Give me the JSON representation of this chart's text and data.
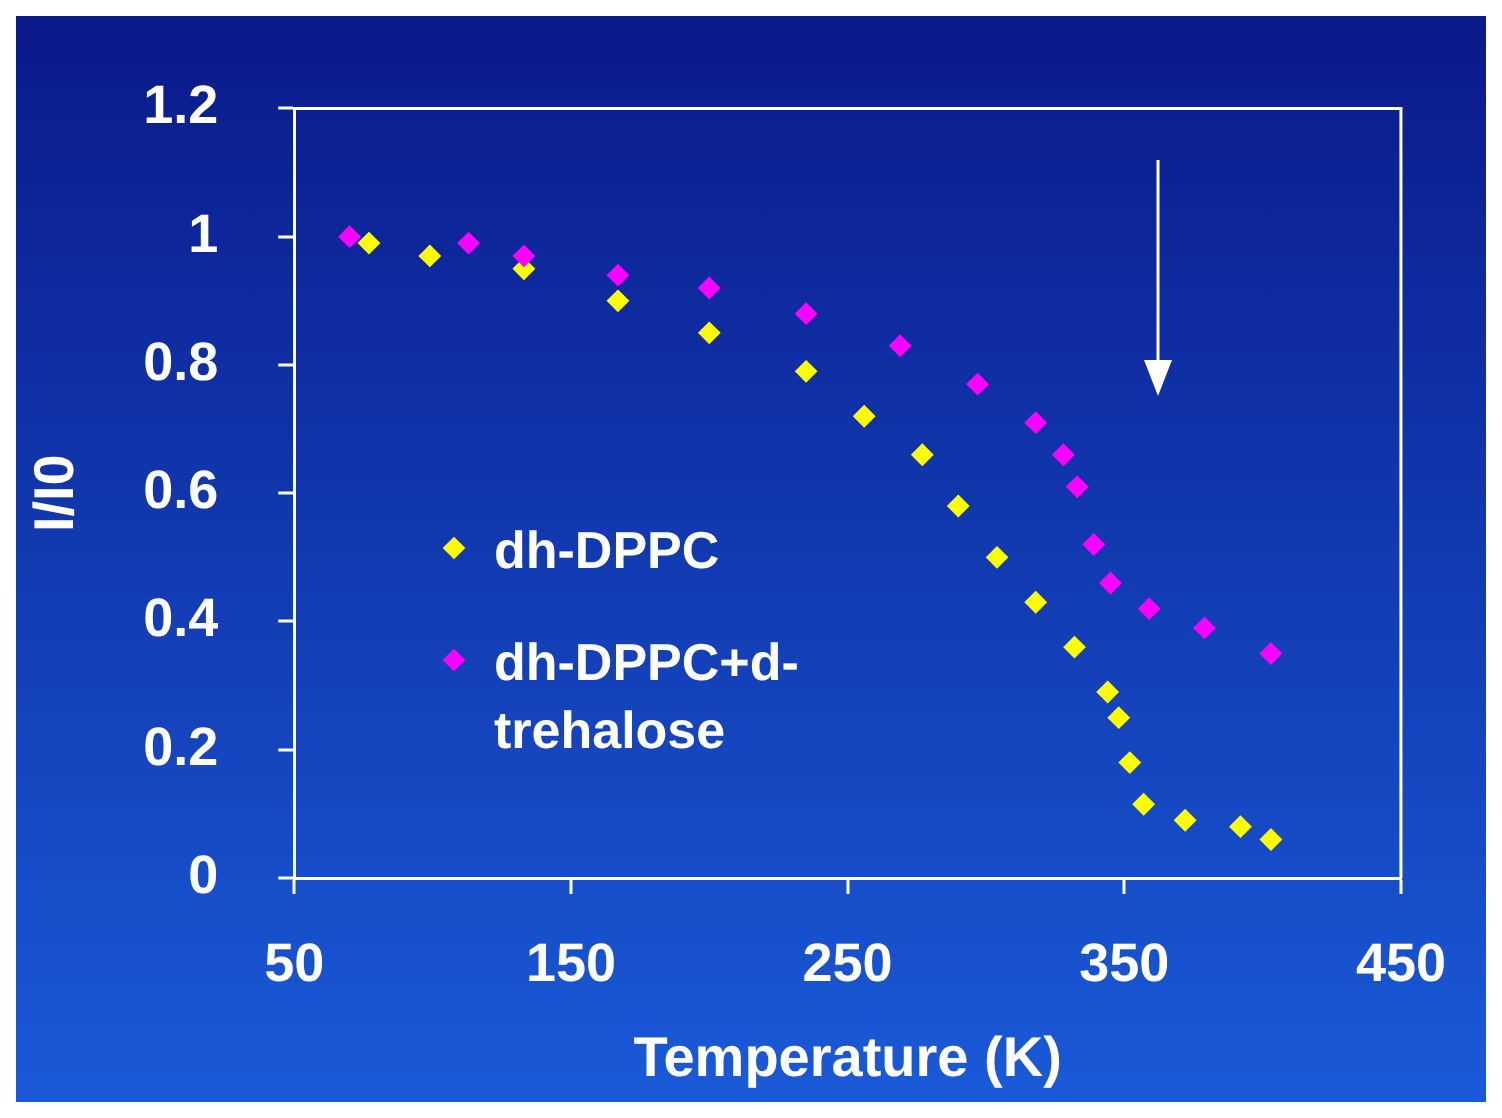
{
  "chart_data": {
    "type": "scatter",
    "xlabel": "Temperature (K)",
    "ylabel": "I/I0",
    "xlim": [
      50,
      450
    ],
    "xticks": [
      50,
      150,
      250,
      350,
      450
    ],
    "ylim": [
      0,
      1.2
    ],
    "yticks": [
      0,
      0.2,
      0.4,
      0.6,
      0.8,
      1,
      1.2
    ],
    "grid": false,
    "legend": "left",
    "marker": "diamond",
    "series": [
      {
        "name": "dh-DPPC",
        "color": "#ffff00",
        "x": [
          77,
          99,
          133,
          167,
          200,
          235,
          256,
          277,
          290,
          304,
          318,
          332,
          344,
          348,
          352,
          357,
          372,
          392,
          403
        ],
        "values": [
          0.99,
          0.97,
          0.95,
          0.9,
          0.85,
          0.79,
          0.72,
          0.66,
          0.58,
          0.5,
          0.43,
          0.36,
          0.29,
          0.25,
          0.18,
          0.115,
          0.09,
          0.08,
          0.06
        ]
      },
      {
        "name": "dh-DPPC+d-trehalose",
        "color": "#ff00ff",
        "x": [
          70,
          113,
          133,
          167,
          200,
          235,
          269,
          297,
          318,
          328,
          333,
          339,
          345,
          359,
          379,
          403
        ],
        "values": [
          1.0,
          0.99,
          0.97,
          0.94,
          0.92,
          0.88,
          0.83,
          0.77,
          0.71,
          0.66,
          0.61,
          0.52,
          0.46,
          0.42,
          0.39,
          0.35
        ]
      }
    ]
  }
}
